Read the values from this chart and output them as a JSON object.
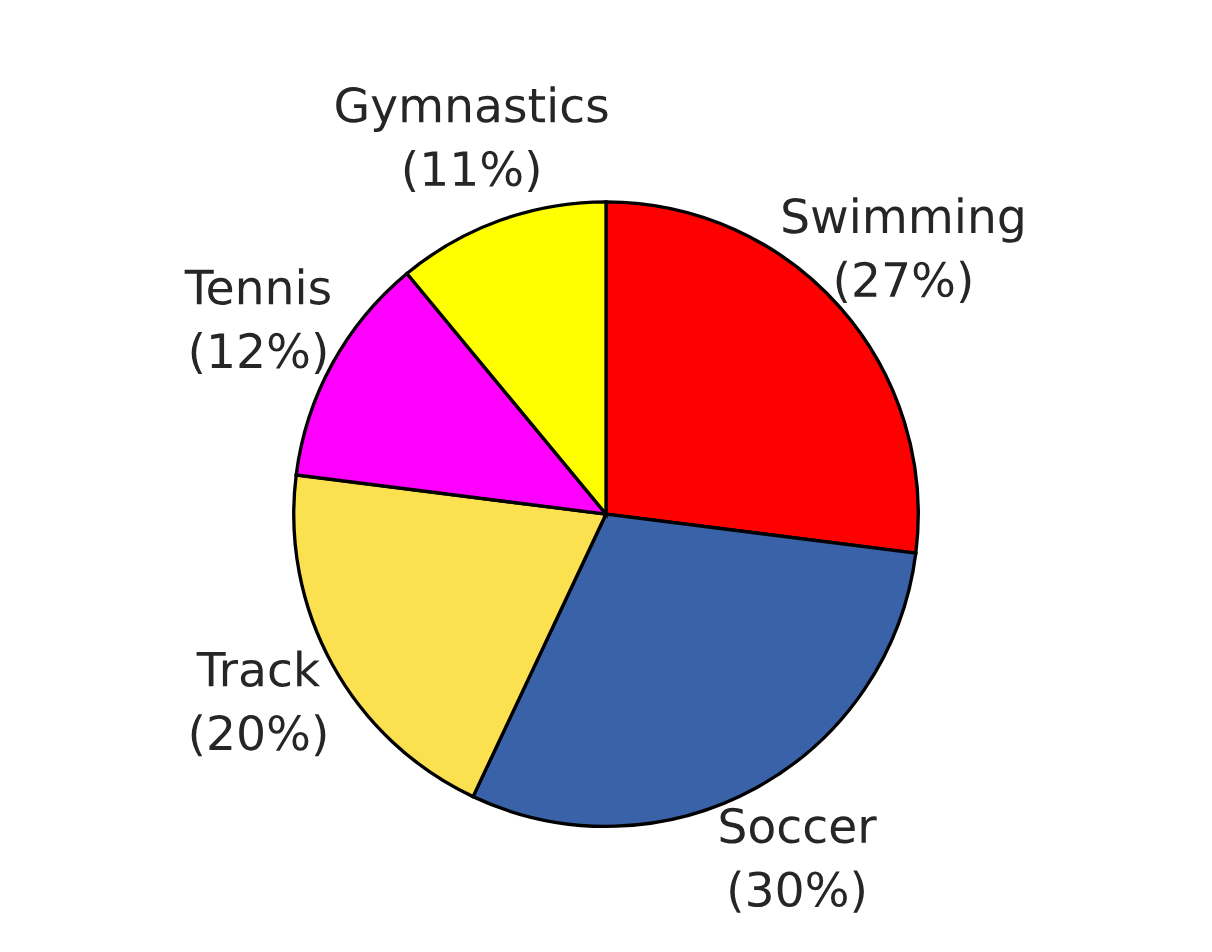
{
  "chart_data": {
    "type": "pie",
    "categories": [
      "Swimming",
      "Soccer",
      "Track",
      "Tennis",
      "Gymnastics"
    ],
    "values": [
      27,
      30,
      20,
      12,
      11
    ],
    "value_labels": [
      "(27%)",
      "(30%)",
      "(20%)",
      "(12%)",
      "(11%)"
    ],
    "colors": [
      "#ff0000",
      "#3a62a8",
      "#fbe04f",
      "#ff00ff",
      "#ffff00"
    ]
  }
}
